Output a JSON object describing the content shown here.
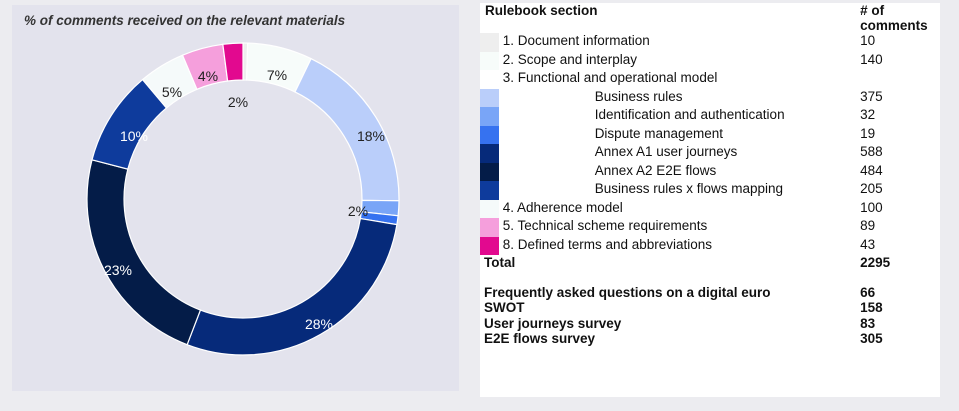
{
  "chart_data": {
    "type": "pie",
    "title": "% of comments received on the relevant materials",
    "categories": [
      "1. Document information",
      "2. Scope and interplay",
      "Business rules",
      "Identification and authentication",
      "Dispute management",
      "Annex A1 user journeys",
      "Annex A2 E2E flows",
      "Business rules x flows mapping",
      "4. Adherence model",
      "5. Technical scheme requirements",
      "8. Defined terms and abbreviations"
    ],
    "values": [
      10,
      140,
      375,
      32,
      19,
      588,
      484,
      205,
      100,
      89,
      43
    ],
    "labels": [
      "",
      "7%",
      "18%",
      "2%",
      "",
      "28%",
      "23%",
      "10%",
      "5%",
      "4%",
      "2%"
    ],
    "colors": [
      "#eeeeee",
      "#f7fcfa",
      "#bacefa",
      "#79a5f7",
      "#3672f0",
      "#062a7a",
      "#041c48",
      "#0e3b9c",
      "#f5fafa",
      "#f59fdc",
      "#e2098f"
    ],
    "donut": true
  },
  "table": {
    "header": {
      "section": "Rulebook section",
      "count": "# of comments"
    },
    "rows": [
      {
        "color": "#eeeeee",
        "label": "1. Document information",
        "count": "10",
        "indent": false
      },
      {
        "color": "#f7fcfa",
        "label": "2. Scope and interplay",
        "count": "140",
        "indent": false
      },
      {
        "color": "#ffffff",
        "label": "3. Functional and operational model",
        "count": "",
        "indent": false
      },
      {
        "color": "#bacefa",
        "label": "Business rules",
        "count": "375",
        "indent": true
      },
      {
        "color": "#79a5f7",
        "label": "Identification and authentication",
        "count": "32",
        "indent": true
      },
      {
        "color": "#3672f0",
        "label": "Dispute management",
        "count": "19",
        "indent": true
      },
      {
        "color": "#062a7a",
        "label": "Annex A1 user journeys",
        "count": "588",
        "indent": true
      },
      {
        "color": "#041c48",
        "label": "Annex A2 E2E flows",
        "count": "484",
        "indent": true
      },
      {
        "color": "#0e3b9c",
        "label": "Business rules x flows mapping",
        "count": "205",
        "indent": true
      },
      {
        "color": "#f5fafa",
        "label": "4. Adherence model",
        "count": "100",
        "indent": false
      },
      {
        "color": "#f59fdc",
        "label": "5. Technical scheme requirements",
        "count": "89",
        "indent": false
      },
      {
        "color": "#e2098f",
        "label": "8. Defined terms and abbreviations",
        "count": "43",
        "indent": false
      }
    ],
    "total": {
      "label": "Total",
      "count": "2295"
    },
    "extra": [
      {
        "label": "Frequently asked questions on a digital euro",
        "count": "66"
      },
      {
        "label": "SWOT",
        "count": "158"
      },
      {
        "label": "User journeys survey",
        "count": "83"
      },
      {
        "label": "E2E flows survey",
        "count": "305"
      }
    ]
  }
}
